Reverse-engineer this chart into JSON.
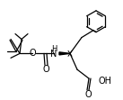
{
  "bg_color": "#ffffff",
  "line_color": "#000000",
  "lw": 0.9,
  "fs": 6.5,
  "fig_width": 1.37,
  "fig_height": 1.11,
  "dpi": 100,
  "xlim": [
    0,
    137
  ],
  "ylim": [
    0,
    111
  ]
}
